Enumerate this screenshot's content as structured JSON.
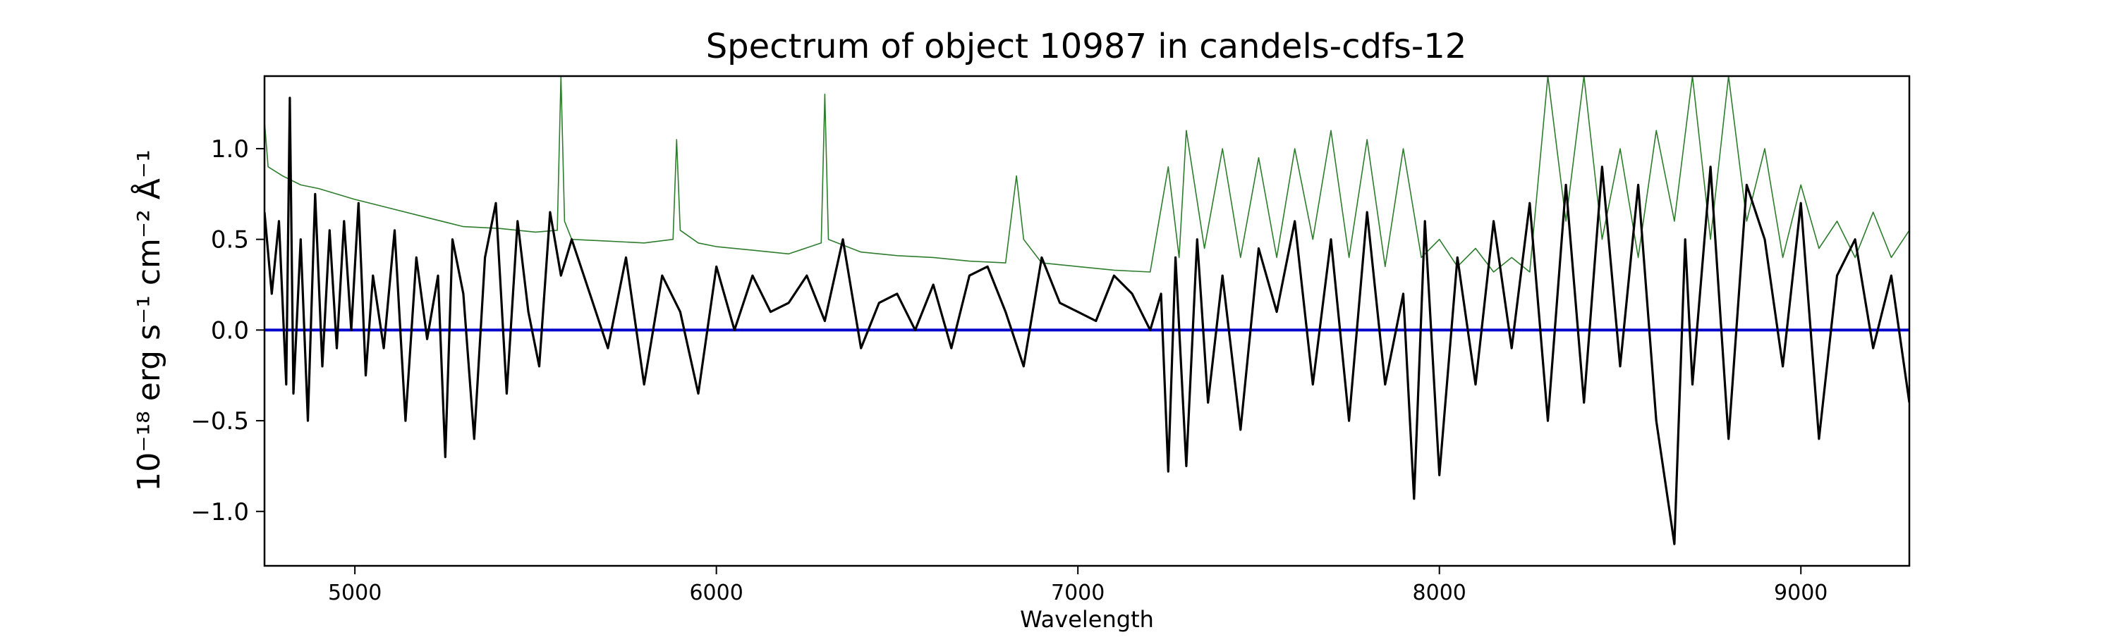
{
  "chart_data": {
    "type": "line",
    "title": "Spectrum of object 10987 in candels-cdfs-12",
    "xlabel": "Wavelength",
    "ylabel": "10⁻¹⁸ erg s⁻¹ cm⁻² Å⁻¹",
    "xlim": [
      4750,
      9300
    ],
    "ylim": [
      -1.3,
      1.4
    ],
    "xticks": [
      5000,
      6000,
      7000,
      8000,
      9000
    ],
    "xtick_labels": [
      "5000",
      "6000",
      "7000",
      "8000",
      "9000"
    ],
    "yticks": [
      -1.0,
      -0.5,
      0.0,
      0.5,
      1.0
    ],
    "ytick_labels": [
      "−1.0",
      "−0.5",
      "0.0",
      "0.5",
      "1.0"
    ],
    "grid": false,
    "series": [
      {
        "role": "flux",
        "color": "#000000",
        "x": [
          4750,
          4770,
          4790,
          4810,
          4820,
          4830,
          4850,
          4870,
          4890,
          4910,
          4930,
          4950,
          4970,
          4990,
          5010,
          5030,
          5050,
          5080,
          5110,
          5140,
          5170,
          5200,
          5230,
          5250,
          5270,
          5300,
          5330,
          5360,
          5390,
          5420,
          5450,
          5480,
          5510,
          5540,
          5570,
          5600,
          5650,
          5700,
          5750,
          5800,
          5850,
          5900,
          5950,
          6000,
          6050,
          6100,
          6150,
          6200,
          6250,
          6300,
          6350,
          6400,
          6450,
          6500,
          6550,
          6600,
          6650,
          6700,
          6750,
          6800,
          6850,
          6900,
          6950,
          7000,
          7050,
          7100,
          7150,
          7200,
          7230,
          7250,
          7270,
          7300,
          7330,
          7360,
          7400,
          7450,
          7500,
          7550,
          7600,
          7650,
          7700,
          7750,
          7800,
          7850,
          7900,
          7930,
          7960,
          8000,
          8050,
          8100,
          8150,
          8200,
          8250,
          8300,
          8350,
          8400,
          8450,
          8500,
          8550,
          8600,
          8650,
          8680,
          8700,
          8750,
          8800,
          8850,
          8900,
          8950,
          9000,
          9050,
          9100,
          9150,
          9200,
          9250,
          9300
        ],
        "y": [
          0.65,
          0.2,
          0.6,
          -0.3,
          1.28,
          -0.35,
          0.5,
          -0.5,
          0.75,
          -0.2,
          0.55,
          -0.1,
          0.6,
          0.0,
          0.7,
          -0.25,
          0.3,
          -0.1,
          0.55,
          -0.5,
          0.4,
          -0.05,
          0.3,
          -0.7,
          0.5,
          0.2,
          -0.6,
          0.4,
          0.7,
          -0.35,
          0.6,
          0.1,
          -0.2,
          0.65,
          0.3,
          0.5,
          0.2,
          -0.1,
          0.4,
          -0.3,
          0.3,
          0.1,
          -0.35,
          0.35,
          0.0,
          0.3,
          0.1,
          0.15,
          0.3,
          0.05,
          0.5,
          -0.1,
          0.15,
          0.2,
          0.0,
          0.25,
          -0.1,
          0.3,
          0.35,
          0.1,
          -0.2,
          0.4,
          0.15,
          0.1,
          0.05,
          0.3,
          0.2,
          0.0,
          0.2,
          -0.78,
          0.4,
          -0.75,
          0.5,
          -0.4,
          0.3,
          -0.55,
          0.45,
          0.1,
          0.6,
          -0.3,
          0.5,
          -0.5,
          0.65,
          -0.3,
          0.2,
          -0.93,
          0.6,
          -0.8,
          0.4,
          -0.3,
          0.6,
          -0.1,
          0.7,
          -0.5,
          0.8,
          -0.4,
          0.9,
          -0.2,
          0.8,
          -0.5,
          -1.18,
          0.5,
          -0.3,
          0.9,
          -0.6,
          0.8,
          0.5,
          -0.2,
          0.7,
          -0.6,
          0.3,
          0.5,
          -0.1,
          0.3,
          -0.4
        ]
      },
      {
        "role": "error",
        "color": "#2e7d2e",
        "x": [
          4750,
          4760,
          4800,
          4850,
          4900,
          5000,
          5100,
          5200,
          5300,
          5400,
          5500,
          5560,
          5570,
          5580,
          5600,
          5700,
          5800,
          5880,
          5890,
          5900,
          5950,
          6000,
          6100,
          6200,
          6290,
          6300,
          6310,
          6400,
          6500,
          6600,
          6700,
          6800,
          6830,
          6850,
          6900,
          6950,
          7000,
          7100,
          7200,
          7250,
          7280,
          7300,
          7350,
          7400,
          7450,
          7500,
          7550,
          7600,
          7650,
          7700,
          7750,
          7800,
          7850,
          7900,
          7950,
          8000,
          8050,
          8100,
          8150,
          8200,
          8250,
          8300,
          8350,
          8400,
          8450,
          8500,
          8550,
          8600,
          8650,
          8700,
          8750,
          8800,
          8850,
          8900,
          8950,
          9000,
          9050,
          9100,
          9150,
          9200,
          9250,
          9300
        ],
        "y": [
          1.15,
          0.9,
          0.85,
          0.8,
          0.78,
          0.72,
          0.67,
          0.62,
          0.57,
          0.56,
          0.54,
          0.55,
          1.4,
          0.6,
          0.5,
          0.49,
          0.48,
          0.5,
          1.05,
          0.55,
          0.48,
          0.46,
          0.44,
          0.42,
          0.48,
          1.3,
          0.5,
          0.43,
          0.41,
          0.4,
          0.38,
          0.37,
          0.85,
          0.5,
          0.37,
          0.36,
          0.35,
          0.33,
          0.32,
          0.9,
          0.4,
          1.1,
          0.45,
          1.0,
          0.4,
          0.95,
          0.4,
          1.0,
          0.5,
          1.1,
          0.4,
          1.05,
          0.35,
          1.0,
          0.4,
          0.5,
          0.35,
          0.45,
          0.32,
          0.4,
          0.32,
          1.4,
          0.6,
          1.4,
          0.5,
          1.0,
          0.4,
          1.1,
          0.6,
          1.4,
          0.5,
          1.4,
          0.6,
          1.0,
          0.4,
          0.8,
          0.45,
          0.6,
          0.4,
          0.65,
          0.4,
          0.55
        ]
      },
      {
        "role": "zero",
        "color": "#0000cc",
        "x": [
          4750,
          9300
        ],
        "y": [
          0.0,
          0.0
        ]
      }
    ]
  }
}
